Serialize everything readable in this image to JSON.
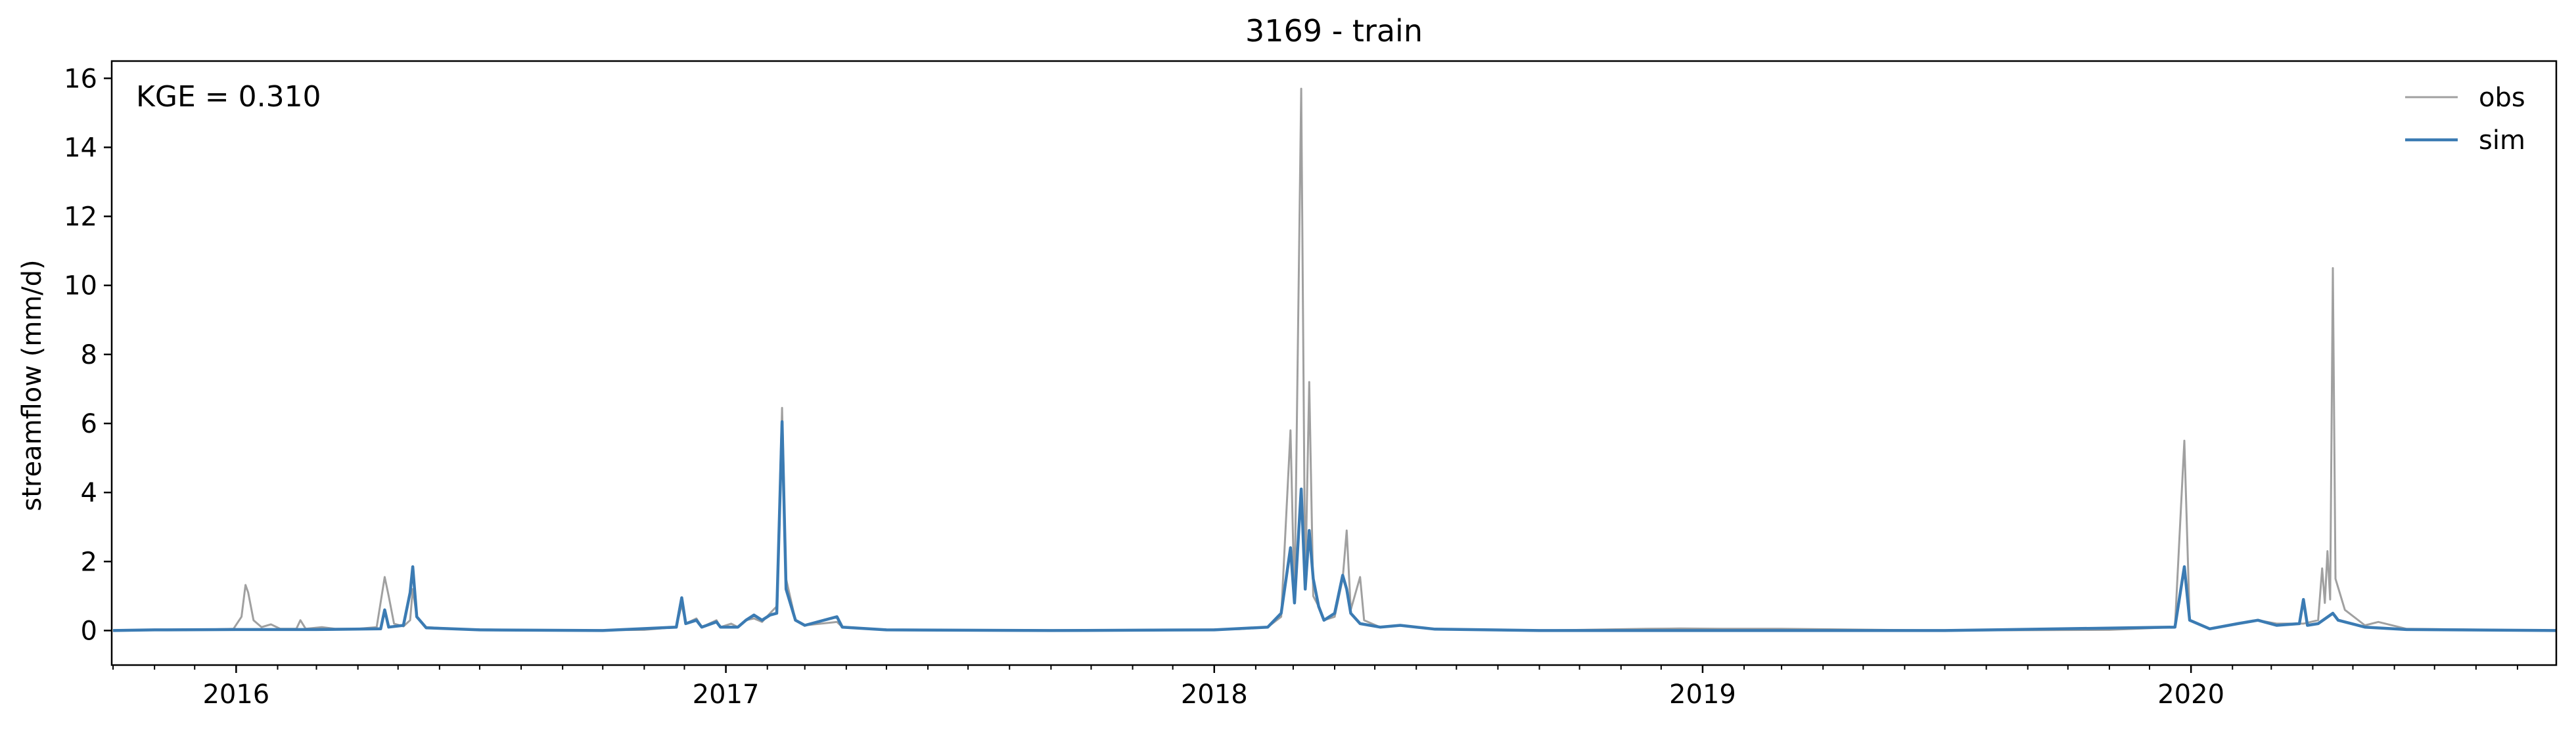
{
  "chart_data": {
    "type": "line",
    "title": "3169 - train",
    "ylabel": "streamflow (mm/d)",
    "xlabel": "",
    "annotation": "KGE = 0.310",
    "xlim": [
      "2015-09-30",
      "2020-09-30"
    ],
    "ylim": [
      -1,
      16.5
    ],
    "yticks": [
      0,
      2,
      4,
      6,
      8,
      10,
      12,
      14,
      16
    ],
    "xticks": [
      {
        "date": "2016-01-01",
        "label": "2016"
      },
      {
        "date": "2017-01-01",
        "label": "2017"
      },
      {
        "date": "2018-01-01",
        "label": "2018"
      },
      {
        "date": "2019-01-01",
        "label": "2019"
      },
      {
        "date": "2020-01-01",
        "label": "2020"
      }
    ],
    "grid": false,
    "legend_position": "top-right",
    "series": [
      {
        "name": "obs",
        "color": "#a0a0a0",
        "points": [
          [
            "2015-10-01",
            0.0
          ],
          [
            "2015-11-01",
            0.02
          ],
          [
            "2015-12-01",
            0.02
          ],
          [
            "2015-12-30",
            0.05
          ],
          [
            "2016-01-05",
            0.4
          ],
          [
            "2016-01-08",
            1.32
          ],
          [
            "2016-01-10",
            1.1
          ],
          [
            "2016-01-14",
            0.3
          ],
          [
            "2016-01-20",
            0.1
          ],
          [
            "2016-01-27",
            0.18
          ],
          [
            "2016-02-03",
            0.05
          ],
          [
            "2016-02-15",
            0.05
          ],
          [
            "2016-02-18",
            0.3
          ],
          [
            "2016-02-22",
            0.05
          ],
          [
            "2016-03-05",
            0.1
          ],
          [
            "2016-03-15",
            0.05
          ],
          [
            "2016-04-01",
            0.05
          ],
          [
            "2016-04-15",
            0.1
          ],
          [
            "2016-04-21",
            1.55
          ],
          [
            "2016-04-24",
            1.0
          ],
          [
            "2016-04-28",
            0.2
          ],
          [
            "2016-05-05",
            0.12
          ],
          [
            "2016-05-10",
            0.3
          ],
          [
            "2016-05-12",
            1.2
          ],
          [
            "2016-05-15",
            0.4
          ],
          [
            "2016-05-22",
            0.1
          ],
          [
            "2016-06-15",
            0.04
          ],
          [
            "2016-09-01",
            0.0
          ],
          [
            "2016-11-01",
            0.02
          ],
          [
            "2016-11-25",
            0.1
          ],
          [
            "2016-11-29",
            0.75
          ],
          [
            "2016-12-02",
            0.2
          ],
          [
            "2016-12-10",
            0.35
          ],
          [
            "2016-12-14",
            0.1
          ],
          [
            "2016-12-25",
            0.3
          ],
          [
            "2016-12-28",
            0.1
          ],
          [
            "2017-01-05",
            0.2
          ],
          [
            "2017-01-10",
            0.1
          ],
          [
            "2017-01-16",
            0.3
          ],
          [
            "2017-01-22",
            0.35
          ],
          [
            "2017-01-28",
            0.25
          ],
          [
            "2017-02-03",
            0.5
          ],
          [
            "2017-02-08",
            0.7
          ],
          [
            "2017-02-12",
            6.45
          ],
          [
            "2017-02-15",
            1.5
          ],
          [
            "2017-02-22",
            0.3
          ],
          [
            "2017-03-01",
            0.15
          ],
          [
            "2017-03-25",
            0.25
          ],
          [
            "2017-03-29",
            0.1
          ],
          [
            "2017-05-01",
            0.03
          ],
          [
            "2017-09-01",
            0.0
          ],
          [
            "2017-12-01",
            0.02
          ],
          [
            "2018-01-20",
            0.04
          ],
          [
            "2018-02-10",
            0.1
          ],
          [
            "2018-02-20",
            0.4
          ],
          [
            "2018-02-27",
            5.8
          ],
          [
            "2018-03-02",
            0.8
          ],
          [
            "2018-03-07",
            15.7
          ],
          [
            "2018-03-10",
            1.2
          ],
          [
            "2018-03-13",
            7.2
          ],
          [
            "2018-03-16",
            1.0
          ],
          [
            "2018-03-20",
            0.7
          ],
          [
            "2018-03-24",
            0.3
          ],
          [
            "2018-04-01",
            0.4
          ],
          [
            "2018-04-07",
            1.5
          ],
          [
            "2018-04-10",
            2.9
          ],
          [
            "2018-04-13",
            0.6
          ],
          [
            "2018-04-20",
            1.55
          ],
          [
            "2018-04-23",
            0.3
          ],
          [
            "2018-05-05",
            0.1
          ],
          [
            "2018-05-20",
            0.15
          ],
          [
            "2018-06-15",
            0.05
          ],
          [
            "2018-09-01",
            0.0
          ],
          [
            "2018-11-20",
            0.05
          ],
          [
            "2018-12-15",
            0.06
          ],
          [
            "2019-01-15",
            0.05
          ],
          [
            "2019-03-01",
            0.05
          ],
          [
            "2019-07-01",
            0.0
          ],
          [
            "2019-11-01",
            0.02
          ],
          [
            "2019-12-20",
            0.1
          ],
          [
            "2019-12-27",
            5.5
          ],
          [
            "2019-12-31",
            0.3
          ],
          [
            "2020-01-15",
            0.05
          ],
          [
            "2020-02-05",
            0.2
          ],
          [
            "2020-02-20",
            0.3
          ],
          [
            "2020-03-05",
            0.2
          ],
          [
            "2020-03-25",
            0.2
          ],
          [
            "2020-04-05",
            0.3
          ],
          [
            "2020-04-08",
            1.8
          ],
          [
            "2020-04-10",
            0.8
          ],
          [
            "2020-04-12",
            2.3
          ],
          [
            "2020-04-14",
            0.9
          ],
          [
            "2020-04-16",
            10.5
          ],
          [
            "2020-04-18",
            1.5
          ],
          [
            "2020-04-25",
            0.6
          ],
          [
            "2020-05-10",
            0.15
          ],
          [
            "2020-05-20",
            0.25
          ],
          [
            "2020-06-10",
            0.05
          ],
          [
            "2020-09-30",
            0.0
          ]
        ]
      },
      {
        "name": "sim",
        "color": "#3b7bb3",
        "points": [
          [
            "2015-10-01",
            0.0
          ],
          [
            "2015-11-01",
            0.02
          ],
          [
            "2016-01-01",
            0.03
          ],
          [
            "2016-03-01",
            0.03
          ],
          [
            "2016-04-18",
            0.05
          ],
          [
            "2016-04-21",
            0.6
          ],
          [
            "2016-04-24",
            0.1
          ],
          [
            "2016-05-05",
            0.15
          ],
          [
            "2016-05-10",
            1.1
          ],
          [
            "2016-05-12",
            1.85
          ],
          [
            "2016-05-15",
            0.4
          ],
          [
            "2016-05-22",
            0.08
          ],
          [
            "2016-07-01",
            0.02
          ],
          [
            "2016-10-01",
            0.0
          ],
          [
            "2016-11-25",
            0.1
          ],
          [
            "2016-11-29",
            0.95
          ],
          [
            "2016-12-02",
            0.2
          ],
          [
            "2016-12-10",
            0.3
          ],
          [
            "2016-12-14",
            0.1
          ],
          [
            "2016-12-25",
            0.25
          ],
          [
            "2016-12-28",
            0.1
          ],
          [
            "2017-01-10",
            0.1
          ],
          [
            "2017-01-16",
            0.3
          ],
          [
            "2017-01-22",
            0.45
          ],
          [
            "2017-01-28",
            0.3
          ],
          [
            "2017-02-03",
            0.45
          ],
          [
            "2017-02-08",
            0.5
          ],
          [
            "2017-02-12",
            6.05
          ],
          [
            "2017-02-15",
            1.2
          ],
          [
            "2017-02-22",
            0.3
          ],
          [
            "2017-03-01",
            0.15
          ],
          [
            "2017-03-25",
            0.4
          ],
          [
            "2017-03-29",
            0.1
          ],
          [
            "2017-05-01",
            0.02
          ],
          [
            "2017-09-01",
            0.0
          ],
          [
            "2018-01-01",
            0.02
          ],
          [
            "2018-02-10",
            0.1
          ],
          [
            "2018-02-20",
            0.5
          ],
          [
            "2018-02-27",
            2.4
          ],
          [
            "2018-03-02",
            0.8
          ],
          [
            "2018-03-07",
            4.1
          ],
          [
            "2018-03-10",
            1.2
          ],
          [
            "2018-03-13",
            2.9
          ],
          [
            "2018-03-16",
            1.5
          ],
          [
            "2018-03-20",
            0.7
          ],
          [
            "2018-03-24",
            0.3
          ],
          [
            "2018-04-01",
            0.5
          ],
          [
            "2018-04-07",
            1.6
          ],
          [
            "2018-04-10",
            1.2
          ],
          [
            "2018-04-13",
            0.5
          ],
          [
            "2018-04-20",
            0.2
          ],
          [
            "2018-05-05",
            0.1
          ],
          [
            "2018-05-20",
            0.15
          ],
          [
            "2018-06-15",
            0.04
          ],
          [
            "2018-09-01",
            0.0
          ],
          [
            "2019-03-01",
            0.0
          ],
          [
            "2019-07-01",
            0.0
          ],
          [
            "2019-12-20",
            0.1
          ],
          [
            "2019-12-27",
            1.85
          ],
          [
            "2019-12-31",
            0.3
          ],
          [
            "2020-01-15",
            0.05
          ],
          [
            "2020-02-05",
            0.2
          ],
          [
            "2020-02-20",
            0.3
          ],
          [
            "2020-03-05",
            0.15
          ],
          [
            "2020-03-22",
            0.2
          ],
          [
            "2020-03-25",
            0.9
          ],
          [
            "2020-03-28",
            0.15
          ],
          [
            "2020-04-05",
            0.2
          ],
          [
            "2020-04-16",
            0.5
          ],
          [
            "2020-04-20",
            0.3
          ],
          [
            "2020-05-10",
            0.1
          ],
          [
            "2020-06-10",
            0.03
          ],
          [
            "2020-09-30",
            0.0
          ]
        ]
      }
    ]
  }
}
